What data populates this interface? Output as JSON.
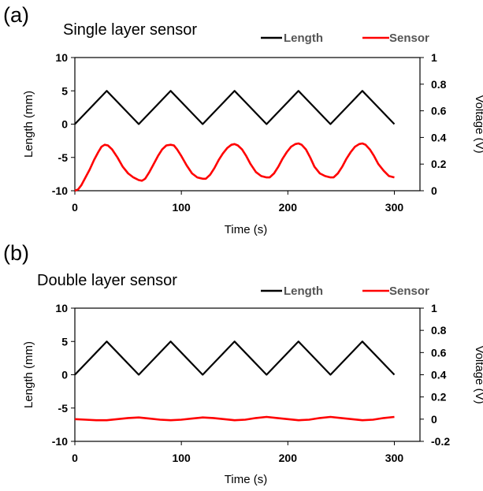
{
  "colors": {
    "length": "#000000",
    "sensor": "#ff0000",
    "axis": "#000000"
  },
  "chart_data": [
    {
      "panel_label": "(a)",
      "type": "line",
      "title": "Single layer sensor",
      "xlabel": "Time (s)",
      "ylabel": "Length (mm)",
      "y2label": "Voltage (V)",
      "xlim": [
        0,
        310
      ],
      "ylim": [
        -10,
        10
      ],
      "y2lim": [
        0,
        1
      ],
      "xticks": [
        "0",
        "100",
        "200",
        "300"
      ],
      "yticks": [
        "-10",
        "-5",
        "0",
        "5",
        "10"
      ],
      "y2ticks": [
        "0",
        "0.2",
        "0.4",
        "0.6",
        "0.8",
        "1"
      ],
      "legend_position": "top-right",
      "series": [
        {
          "name": "Length",
          "axis": "left",
          "color": "#000000",
          "x": [
            0,
            30,
            60,
            90,
            120,
            150,
            180,
            210,
            240,
            270,
            300
          ],
          "y": [
            0,
            5,
            0,
            5,
            0,
            5,
            0,
            5,
            0,
            5,
            0
          ]
        },
        {
          "name": "Sensor",
          "axis": "right",
          "color": "#ff0000",
          "x": [
            0,
            3,
            6,
            10,
            14,
            18,
            22,
            25,
            28,
            31,
            35,
            40,
            45,
            50,
            55,
            60,
            63,
            66,
            70,
            74,
            78,
            82,
            86,
            90,
            93,
            96,
            100,
            105,
            110,
            115,
            120,
            123,
            127,
            131,
            135,
            139,
            143,
            147,
            150,
            153,
            157,
            161,
            165,
            170,
            175,
            180,
            183,
            187,
            191,
            195,
            199,
            203,
            207,
            210,
            213,
            217,
            221,
            225,
            230,
            235,
            240,
            243,
            247,
            251,
            255,
            259,
            263,
            267,
            270,
            273,
            277,
            281,
            285,
            290,
            295,
            300
          ],
          "y": [
            0.0,
            0.01,
            0.04,
            0.1,
            0.16,
            0.23,
            0.29,
            0.33,
            0.345,
            0.34,
            0.31,
            0.25,
            0.18,
            0.13,
            0.1,
            0.08,
            0.075,
            0.09,
            0.14,
            0.2,
            0.26,
            0.31,
            0.34,
            0.345,
            0.34,
            0.31,
            0.26,
            0.19,
            0.13,
            0.1,
            0.09,
            0.09,
            0.12,
            0.17,
            0.23,
            0.28,
            0.32,
            0.345,
            0.35,
            0.34,
            0.31,
            0.26,
            0.2,
            0.14,
            0.11,
            0.1,
            0.1,
            0.13,
            0.18,
            0.24,
            0.29,
            0.33,
            0.35,
            0.355,
            0.345,
            0.31,
            0.25,
            0.18,
            0.13,
            0.11,
            0.1,
            0.1,
            0.13,
            0.18,
            0.24,
            0.29,
            0.33,
            0.35,
            0.355,
            0.345,
            0.31,
            0.26,
            0.2,
            0.15,
            0.11,
            0.1
          ]
        }
      ]
    },
    {
      "panel_label": "(b)",
      "type": "line",
      "title": "Double layer sensor",
      "xlabel": "Time (s)",
      "ylabel": "Length (mm)",
      "y2label": "Voltage (V)",
      "xlim": [
        0,
        310
      ],
      "ylim": [
        -10,
        10
      ],
      "y2lim": [
        -0.2,
        1
      ],
      "xticks": [
        "0",
        "100",
        "200",
        "300"
      ],
      "yticks": [
        "-10",
        "-5",
        "0",
        "5",
        "10"
      ],
      "y2ticks": [
        "-0.2",
        "0",
        "0.2",
        "0.4",
        "0.6",
        "0.8",
        "1"
      ],
      "legend_position": "top-right",
      "series": [
        {
          "name": "Length",
          "axis": "left",
          "color": "#000000",
          "x": [
            0,
            30,
            60,
            90,
            120,
            150,
            180,
            210,
            240,
            270,
            300
          ],
          "y": [
            0,
            5,
            0,
            5,
            0,
            5,
            0,
            5,
            0,
            5,
            0
          ]
        },
        {
          "name": "Sensor",
          "axis": "right",
          "color": "#ff0000",
          "x": [
            0,
            10,
            20,
            30,
            40,
            50,
            60,
            70,
            80,
            90,
            100,
            110,
            120,
            130,
            140,
            150,
            160,
            170,
            180,
            190,
            200,
            210,
            220,
            230,
            240,
            250,
            260,
            270,
            280,
            290,
            300
          ],
          "y": [
            0.0,
            -0.005,
            -0.01,
            -0.01,
            0.0,
            0.01,
            0.015,
            0.005,
            -0.005,
            -0.01,
            -0.005,
            0.005,
            0.015,
            0.01,
            0.0,
            -0.01,
            -0.005,
            0.01,
            0.02,
            0.01,
            0.0,
            -0.01,
            -0.005,
            0.01,
            0.02,
            0.01,
            0.0,
            -0.01,
            -0.005,
            0.01,
            0.02
          ]
        }
      ]
    }
  ]
}
